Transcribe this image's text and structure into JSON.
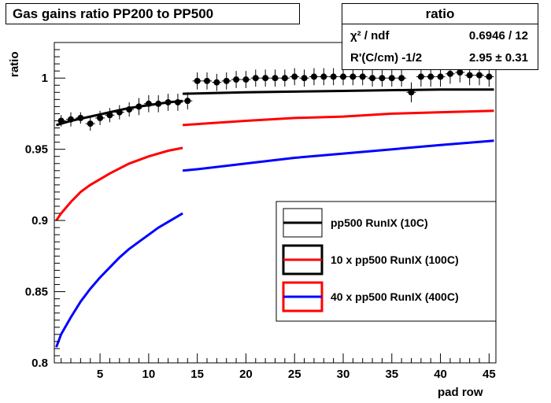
{
  "chart_data": {
    "type": "scatter",
    "title": "Gas gains ratio PP200 to PP500",
    "xlabel": "pad row",
    "ylabel": "ratio",
    "xlim": [
      0.3,
      45.7
    ],
    "ylim": [
      0.8,
      1.025
    ],
    "x_ticks": [
      5,
      10,
      15,
      20,
      25,
      30,
      35,
      40,
      45
    ],
    "y_ticks": [
      0.8,
      0.85,
      0.9,
      0.95,
      1
    ],
    "y_tick_labels": [
      "0.8",
      "0.85",
      "0.9",
      "0.95",
      "1"
    ],
    "grid": false,
    "stats": {
      "title": "ratio",
      "rows": [
        {
          "label": "χ² / ndf",
          "value": "0.6946 / 12"
        },
        {
          "label": "R'(C/cm) -1/2",
          "value": "2.95 ± 0.31"
        }
      ]
    },
    "points": {
      "x": [
        1,
        2,
        3,
        4,
        5,
        6,
        7,
        8,
        9,
        10,
        11,
        12,
        13,
        14,
        15,
        16,
        17,
        18,
        19,
        20,
        21,
        22,
        23,
        24,
        25,
        26,
        27,
        28,
        29,
        30,
        31,
        32,
        33,
        34,
        35,
        36,
        37,
        38,
        39,
        40,
        41,
        42,
        43,
        44,
        45
      ],
      "y": [
        0.97,
        0.971,
        0.972,
        0.968,
        0.972,
        0.974,
        0.976,
        0.978,
        0.98,
        0.982,
        0.982,
        0.983,
        0.983,
        0.984,
        0.998,
        0.998,
        0.997,
        0.998,
        0.999,
        0.999,
        1.0,
        1.0,
        1.0,
        1.0,
        1.001,
        1.0,
        1.001,
        1.001,
        1.001,
        1.001,
        1.001,
        1.001,
        1.0,
        1.0,
        1.0,
        1.0,
        0.99,
        1.001,
        1.001,
        1.001,
        1.003,
        1.004,
        1.002,
        1.002,
        1.001
      ],
      "err": [
        0.004,
        0.005,
        0.004,
        0.005,
        0.005,
        0.005,
        0.005,
        0.005,
        0.006,
        0.006,
        0.006,
        0.006,
        0.006,
        0.006,
        0.006,
        0.006,
        0.006,
        0.006,
        0.006,
        0.006,
        0.006,
        0.006,
        0.006,
        0.006,
        0.006,
        0.006,
        0.006,
        0.006,
        0.006,
        0.006,
        0.006,
        0.006,
        0.006,
        0.006,
        0.006,
        0.006,
        0.007,
        0.007,
        0.007,
        0.007,
        0.007,
        0.007,
        0.007,
        0.007,
        0.007
      ]
    },
    "series": [
      {
        "name": "pp500 RunIX (10C)",
        "color": "#000000",
        "segments": [
          {
            "x": [
              0.5,
              2,
              4,
              6,
              8,
              10,
              12,
              13.5
            ],
            "y": [
              0.967,
              0.97,
              0.973,
              0.976,
              0.979,
              0.981,
              0.983,
              0.984
            ]
          },
          {
            "x": [
              13.5,
              20,
              30,
              40,
              45.5
            ],
            "y": [
              0.989,
              0.99,
              0.991,
              0.992,
              0.992
            ]
          }
        ]
      },
      {
        "name": "10 x pp500 RunIX (100C)",
        "color": "#ff0000",
        "segments": [
          {
            "x": [
              0.5,
              1,
              2,
              3,
              4,
              5,
              6,
              8,
              10,
              12,
              13.5
            ],
            "y": [
              0.9,
              0.905,
              0.913,
              0.92,
              0.925,
              0.929,
              0.933,
              0.94,
              0.945,
              0.949,
              0.951
            ]
          },
          {
            "x": [
              13.5,
              20,
              25,
              30,
              35,
              40,
              45.5
            ],
            "y": [
              0.967,
              0.97,
              0.972,
              0.973,
              0.975,
              0.976,
              0.977
            ]
          }
        ]
      },
      {
        "name": "40 x pp500 RunIX (400C)",
        "color": "#0000ff",
        "segments": [
          {
            "x": [
              0.5,
              1,
              2,
              3,
              4,
              5,
              6,
              7,
              8,
              9,
              10,
              11,
              12,
              13,
              13.5
            ],
            "y": [
              0.811,
              0.82,
              0.832,
              0.843,
              0.852,
              0.86,
              0.867,
              0.874,
              0.88,
              0.885,
              0.89,
              0.895,
              0.899,
              0.903,
              0.905
            ]
          },
          {
            "x": [
              13.5,
              15,
              20,
              25,
              30,
              35,
              40,
              45.5
            ],
            "y": [
              0.935,
              0.936,
              0.94,
              0.944,
              0.947,
              0.95,
              0.953,
              0.956
            ]
          }
        ]
      }
    ],
    "legend": {
      "position": "lower-right"
    }
  }
}
